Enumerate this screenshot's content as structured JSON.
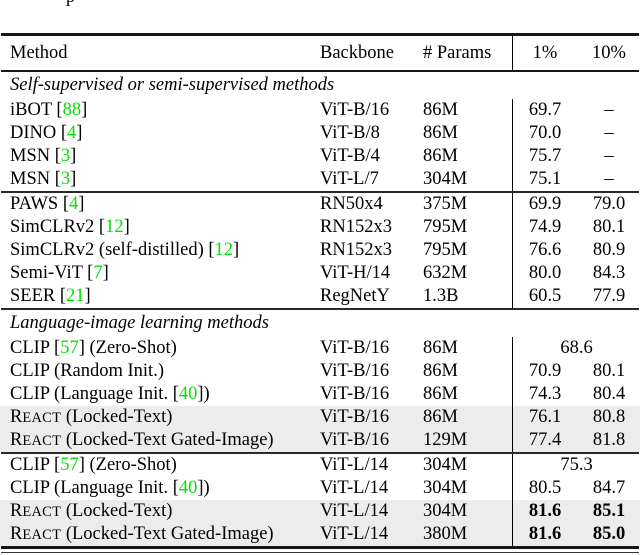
{
  "caption_fragment": "p",
  "colors": {
    "citation_green": "#00e300",
    "row_highlight": "#ececec"
  },
  "table": {
    "columns": [
      "Method",
      "Backbone",
      "# Params",
      "1%",
      "10%"
    ],
    "sections": [
      {
        "label": "Self-supervised or semi-supervised methods",
        "groups": [
          {
            "rows": [
              {
                "method": "iBOT [88]",
                "backbone": "ViT-B/16",
                "params": "86M",
                "v1": "69.7",
                "v10": "–"
              },
              {
                "method": "DINO [4]",
                "backbone": "ViT-B/8",
                "params": "86M",
                "v1": "70.0",
                "v10": "–"
              },
              {
                "method": "MSN [3]",
                "backbone": "ViT-B/4",
                "params": "86M",
                "v1": "75.7",
                "v10": "–"
              },
              {
                "method": "MSN [3]",
                "backbone": "ViT-L/7",
                "params": "304M",
                "v1": "75.1",
                "v10": "–"
              }
            ]
          },
          {
            "rows": [
              {
                "method": "PAWS [4]",
                "backbone": "RN50x4",
                "params": "375M",
                "v1": "69.9",
                "v10": "79.0"
              },
              {
                "method": "SimCLRv2 [12]",
                "backbone": "RN152x3",
                "params": "795M",
                "v1": "74.9",
                "v10": "80.1"
              },
              {
                "method": "SimCLRv2 (self-distilled) [12]",
                "backbone": "RN152x3",
                "params": "795M",
                "v1": "76.6",
                "v10": "80.9"
              },
              {
                "method": "Semi-ViT [7]",
                "backbone": "ViT-H/14",
                "params": "632M",
                "v1": "80.0",
                "v10": "84.3"
              },
              {
                "method": "SEER [21]",
                "backbone": "RegNetY",
                "params": "1.3B",
                "v1": "60.5",
                "v10": "77.9"
              }
            ]
          }
        ]
      },
      {
        "label": "Language-image learning methods",
        "groups": [
          {
            "rows": [
              {
                "method": "CLIP [57] (Zero-Shot)",
                "backbone": "ViT-B/16",
                "params": "86M",
                "span": "68.6"
              },
              {
                "method": "CLIP (Random Init.)",
                "backbone": "ViT-B/16",
                "params": "86M",
                "v1": "70.9",
                "v10": "80.1"
              },
              {
                "method": "CLIP (Language Init. [40])",
                "backbone": "ViT-B/16",
                "params": "86M",
                "v1": "74.3",
                "v10": "80.4"
              },
              {
                "method": "REACT (Locked-Text)",
                "backbone": "ViT-B/16",
                "params": "86M",
                "v1": "76.1",
                "v10": "80.8",
                "highlight": true
              },
              {
                "method": "REACT (Locked-Text Gated-Image)",
                "backbone": "ViT-B/16",
                "params": "129M",
                "v1": "77.4",
                "v10": "81.8",
                "highlight": true
              }
            ]
          },
          {
            "rows": [
              {
                "method": "CLIP [57] (Zero-Shot)",
                "backbone": "ViT-L/14",
                "params": "304M",
                "span": "75.3"
              },
              {
                "method": "CLIP (Language Init. [40])",
                "backbone": "ViT-L/14",
                "params": "304M",
                "v1": "80.5",
                "v10": "84.7"
              },
              {
                "method": "REACT (Locked-Text)",
                "backbone": "ViT-L/14",
                "params": "304M",
                "v1": "81.6",
                "v10": "85.1",
                "highlight": true,
                "bold": true
              },
              {
                "method": "REACT (Locked-Text Gated-Image)",
                "backbone": "ViT-L/14",
                "params": "380M",
                "v1": "81.6",
                "v10": "85.0",
                "highlight": true,
                "bold": true
              }
            ]
          }
        ]
      }
    ]
  }
}
